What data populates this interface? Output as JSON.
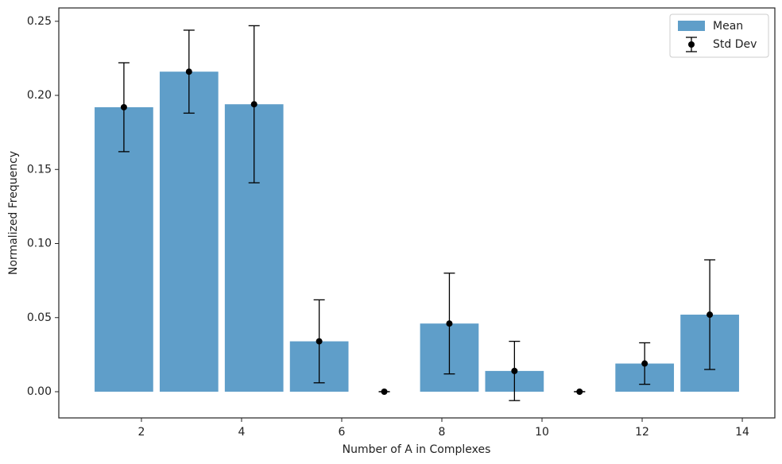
{
  "chart_data": {
    "type": "histogram",
    "x_label": "Number of A in Complexes",
    "y_label": "Normalized Frequency",
    "bins": [
      1,
      2.3,
      3.6,
      4.9,
      6.2,
      7.5,
      8.8,
      10.1,
      11.4,
      12.7,
      14
    ],
    "series": [
      {
        "name": "Mean",
        "color": "#5f9ec9",
        "values": [
          0.192,
          0.216,
          0.194,
          0.034,
          0,
          0.046,
          0.014,
          0,
          0.019,
          0.052
        ]
      },
      {
        "name": "Std Dev",
        "color": "#000000",
        "values": [
          0.03,
          0.028,
          0.053,
          0.028,
          0,
          0.034,
          0.02,
          0,
          0.014,
          0.037
        ]
      }
    ],
    "xlim": [
      0.35,
      14.65
    ],
    "xticks": [
      2,
      4,
      6,
      8,
      10,
      12,
      14
    ],
    "ylim": [
      -0.0177,
      0.259
    ],
    "yticks": [
      {
        "value": 0,
        "label": "0.00"
      },
      {
        "value": 0.05,
        "label": "0.05"
      },
      {
        "value": 0.1,
        "label": "0.10"
      },
      {
        "value": 0.15,
        "label": "0.15"
      },
      {
        "value": 0.2,
        "label": "0.20"
      },
      {
        "value": 0.25,
        "label": "0.25"
      }
    ],
    "legend": "upper right"
  }
}
